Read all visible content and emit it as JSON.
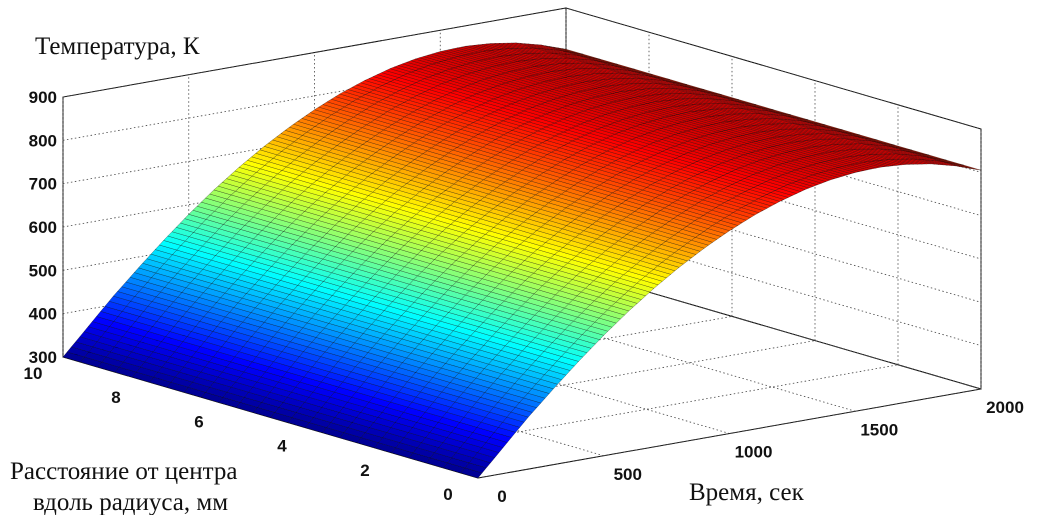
{
  "chart_data": {
    "type": "surface",
    "zlabel": "Температура, К",
    "ylabel_lines": [
      "Расстояние от центра",
      "вдоль радиуса, мм"
    ],
    "xlabel": "Время, сек",
    "xlim": [
      0,
      2000
    ],
    "ylim": [
      0,
      10
    ],
    "zlim": [
      300,
      900
    ],
    "x_ticks": [
      "0",
      "500",
      "1000",
      "1500",
      "2000"
    ],
    "y_ticks": [
      "0",
      "2",
      "4",
      "6",
      "8",
      "10"
    ],
    "z_ticks": [
      "300",
      "400",
      "500",
      "600",
      "700",
      "800",
      "900"
    ],
    "x_tick_values": [
      0,
      500,
      1000,
      1500,
      2000
    ],
    "y_tick_values": [
      0,
      2,
      4,
      6,
      8,
      10
    ],
    "z_tick_values": [
      300,
      400,
      500,
      600,
      700,
      800,
      900
    ],
    "grid": true,
    "colormap": "jet",
    "surface": {
      "time": [
        0,
        100,
        200,
        300,
        400,
        500,
        600,
        700,
        800,
        900,
        1000,
        1100,
        1200,
        1300,
        1400,
        1500,
        1600,
        1700,
        1800,
        1900,
        2000
      ],
      "temperature_at_center": [
        300,
        360,
        420,
        475,
        528,
        578,
        624,
        666,
        704,
        738,
        768,
        794,
        815,
        832,
        844,
        851,
        853,
        849,
        840,
        825,
        805
      ],
      "radial_variation": "negligible"
    }
  }
}
